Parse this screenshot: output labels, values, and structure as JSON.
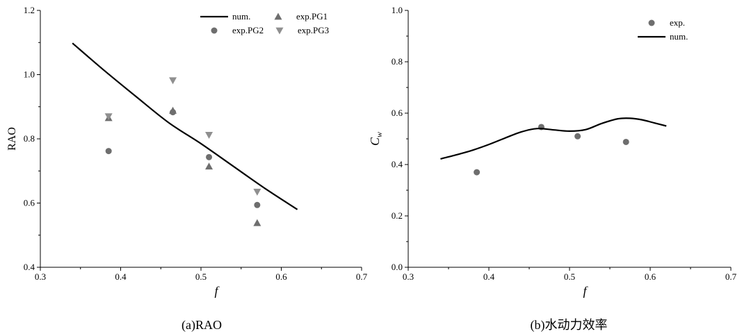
{
  "chart_data": [
    {
      "type": "line+scatter",
      "caption": "(a)RAO",
      "xlabel": "f",
      "ylabel": "RAO",
      "xlim": [
        0.3,
        0.7
      ],
      "ylim": [
        0.4,
        1.2
      ],
      "xticks": [
        "0.3",
        "0.4",
        "0.5",
        "0.6",
        "0.7"
      ],
      "yticks": [
        "0.4",
        "0.6",
        "0.8",
        "1.0",
        "1.2"
      ],
      "legend_position": "top-right",
      "colors": {
        "line": "#000000",
        "marker": "#6e6e6e",
        "marker_light": "#8f8f8f"
      },
      "series": [
        {
          "name": "num.",
          "kind": "line",
          "x": [
            0.34,
            0.38,
            0.42,
            0.46,
            0.5,
            0.54,
            0.58,
            0.62
          ],
          "y": [
            1.098,
            1.012,
            0.93,
            0.85,
            0.785,
            0.715,
            0.645,
            0.58
          ]
        },
        {
          "name": "exp.PG1",
          "kind": "scatter",
          "marker": "triangle-up",
          "x": [
            0.385,
            0.465,
            0.51,
            0.57
          ],
          "y": [
            0.865,
            0.888,
            0.714,
            0.538
          ]
        },
        {
          "name": "exp.PG2",
          "kind": "scatter",
          "marker": "circle",
          "x": [
            0.385,
            0.465,
            0.51,
            0.57
          ],
          "y": [
            0.762,
            0.883,
            0.743,
            0.594
          ]
        },
        {
          "name": "exp.PG3",
          "kind": "scatter",
          "marker": "triangle-down",
          "x": [
            0.385,
            0.465,
            0.51,
            0.57
          ],
          "y": [
            0.87,
            0.982,
            0.812,
            0.635
          ]
        }
      ]
    },
    {
      "type": "line+scatter",
      "caption": "(b)水动力效率",
      "xlabel": "f",
      "ylabel": "C",
      "ylabel_sub": "w",
      "xlim": [
        0.3,
        0.7
      ],
      "ylim": [
        0.0,
        1.0
      ],
      "xticks": [
        "0.3",
        "0.4",
        "0.5",
        "0.6",
        "0.7"
      ],
      "yticks": [
        "0.0",
        "0.2",
        "0.4",
        "0.6",
        "0.8",
        "1.0"
      ],
      "legend_position": "top-right",
      "colors": {
        "line": "#000000",
        "marker": "#6e6e6e"
      },
      "series": [
        {
          "name": "exp.",
          "kind": "scatter",
          "marker": "circle",
          "x": [
            0.385,
            0.465,
            0.51,
            0.57
          ],
          "y": [
            0.37,
            0.546,
            0.51,
            0.488
          ]
        },
        {
          "name": "num.",
          "kind": "line",
          "x": [
            0.34,
            0.36,
            0.38,
            0.4,
            0.42,
            0.44,
            0.46,
            0.48,
            0.5,
            0.52,
            0.54,
            0.56,
            0.575,
            0.59,
            0.605,
            0.62
          ],
          "y": [
            0.422,
            0.438,
            0.456,
            0.478,
            0.503,
            0.527,
            0.54,
            0.535,
            0.53,
            0.536,
            0.56,
            0.578,
            0.58,
            0.574,
            0.562,
            0.55
          ]
        }
      ]
    }
  ]
}
